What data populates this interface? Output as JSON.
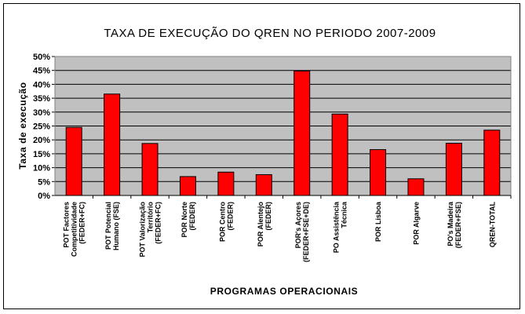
{
  "chart_data": {
    "type": "bar",
    "title": "TAXA DE EXECUÇÃO DO QREN NO PERIODO 2007-2009",
    "xlabel": "PROGRAMAS OPERACIONAIS",
    "ylabel": "Taxa de execução",
    "ylim": [
      0,
      50
    ],
    "yticks": [
      "0%",
      "5%",
      "10%",
      "15%",
      "20%",
      "25%",
      "30%",
      "35%",
      "40%",
      "45%",
      "50%"
    ],
    "grid": true,
    "legend": "none",
    "colors": {
      "bar": "#ff0000",
      "plot_background": "#c0c0c0",
      "frame": "#000000"
    },
    "categories": [
      [
        "POT Factores",
        "Competitividade",
        "(FEDER+FC)"
      ],
      [
        "POT Potencial",
        "Humano (FSE)"
      ],
      [
        "POT Valorização",
        "Território",
        "(FEDER+FC)"
      ],
      [
        "POR Norte",
        "(FEDER)"
      ],
      [
        "POR Centro",
        "(FEDER)"
      ],
      [
        "POR Alentejo",
        "(FEDER)"
      ],
      [
        "POR's Açores",
        "(FEDER+FSE+DE)"
      ],
      [
        "PO Assistência",
        "Técnica"
      ],
      [
        "POR Lisboa"
      ],
      [
        "POR Algarve"
      ],
      [
        "PO's Madeira",
        "(FEDER+FSE)"
      ],
      [
        "QREN-TOTAL"
      ]
    ],
    "values": [
      24.5,
      36.5,
      18.7,
      6.8,
      8.4,
      7.5,
      44.8,
      29.3,
      16.5,
      6.0,
      18.8,
      23.5
    ]
  }
}
